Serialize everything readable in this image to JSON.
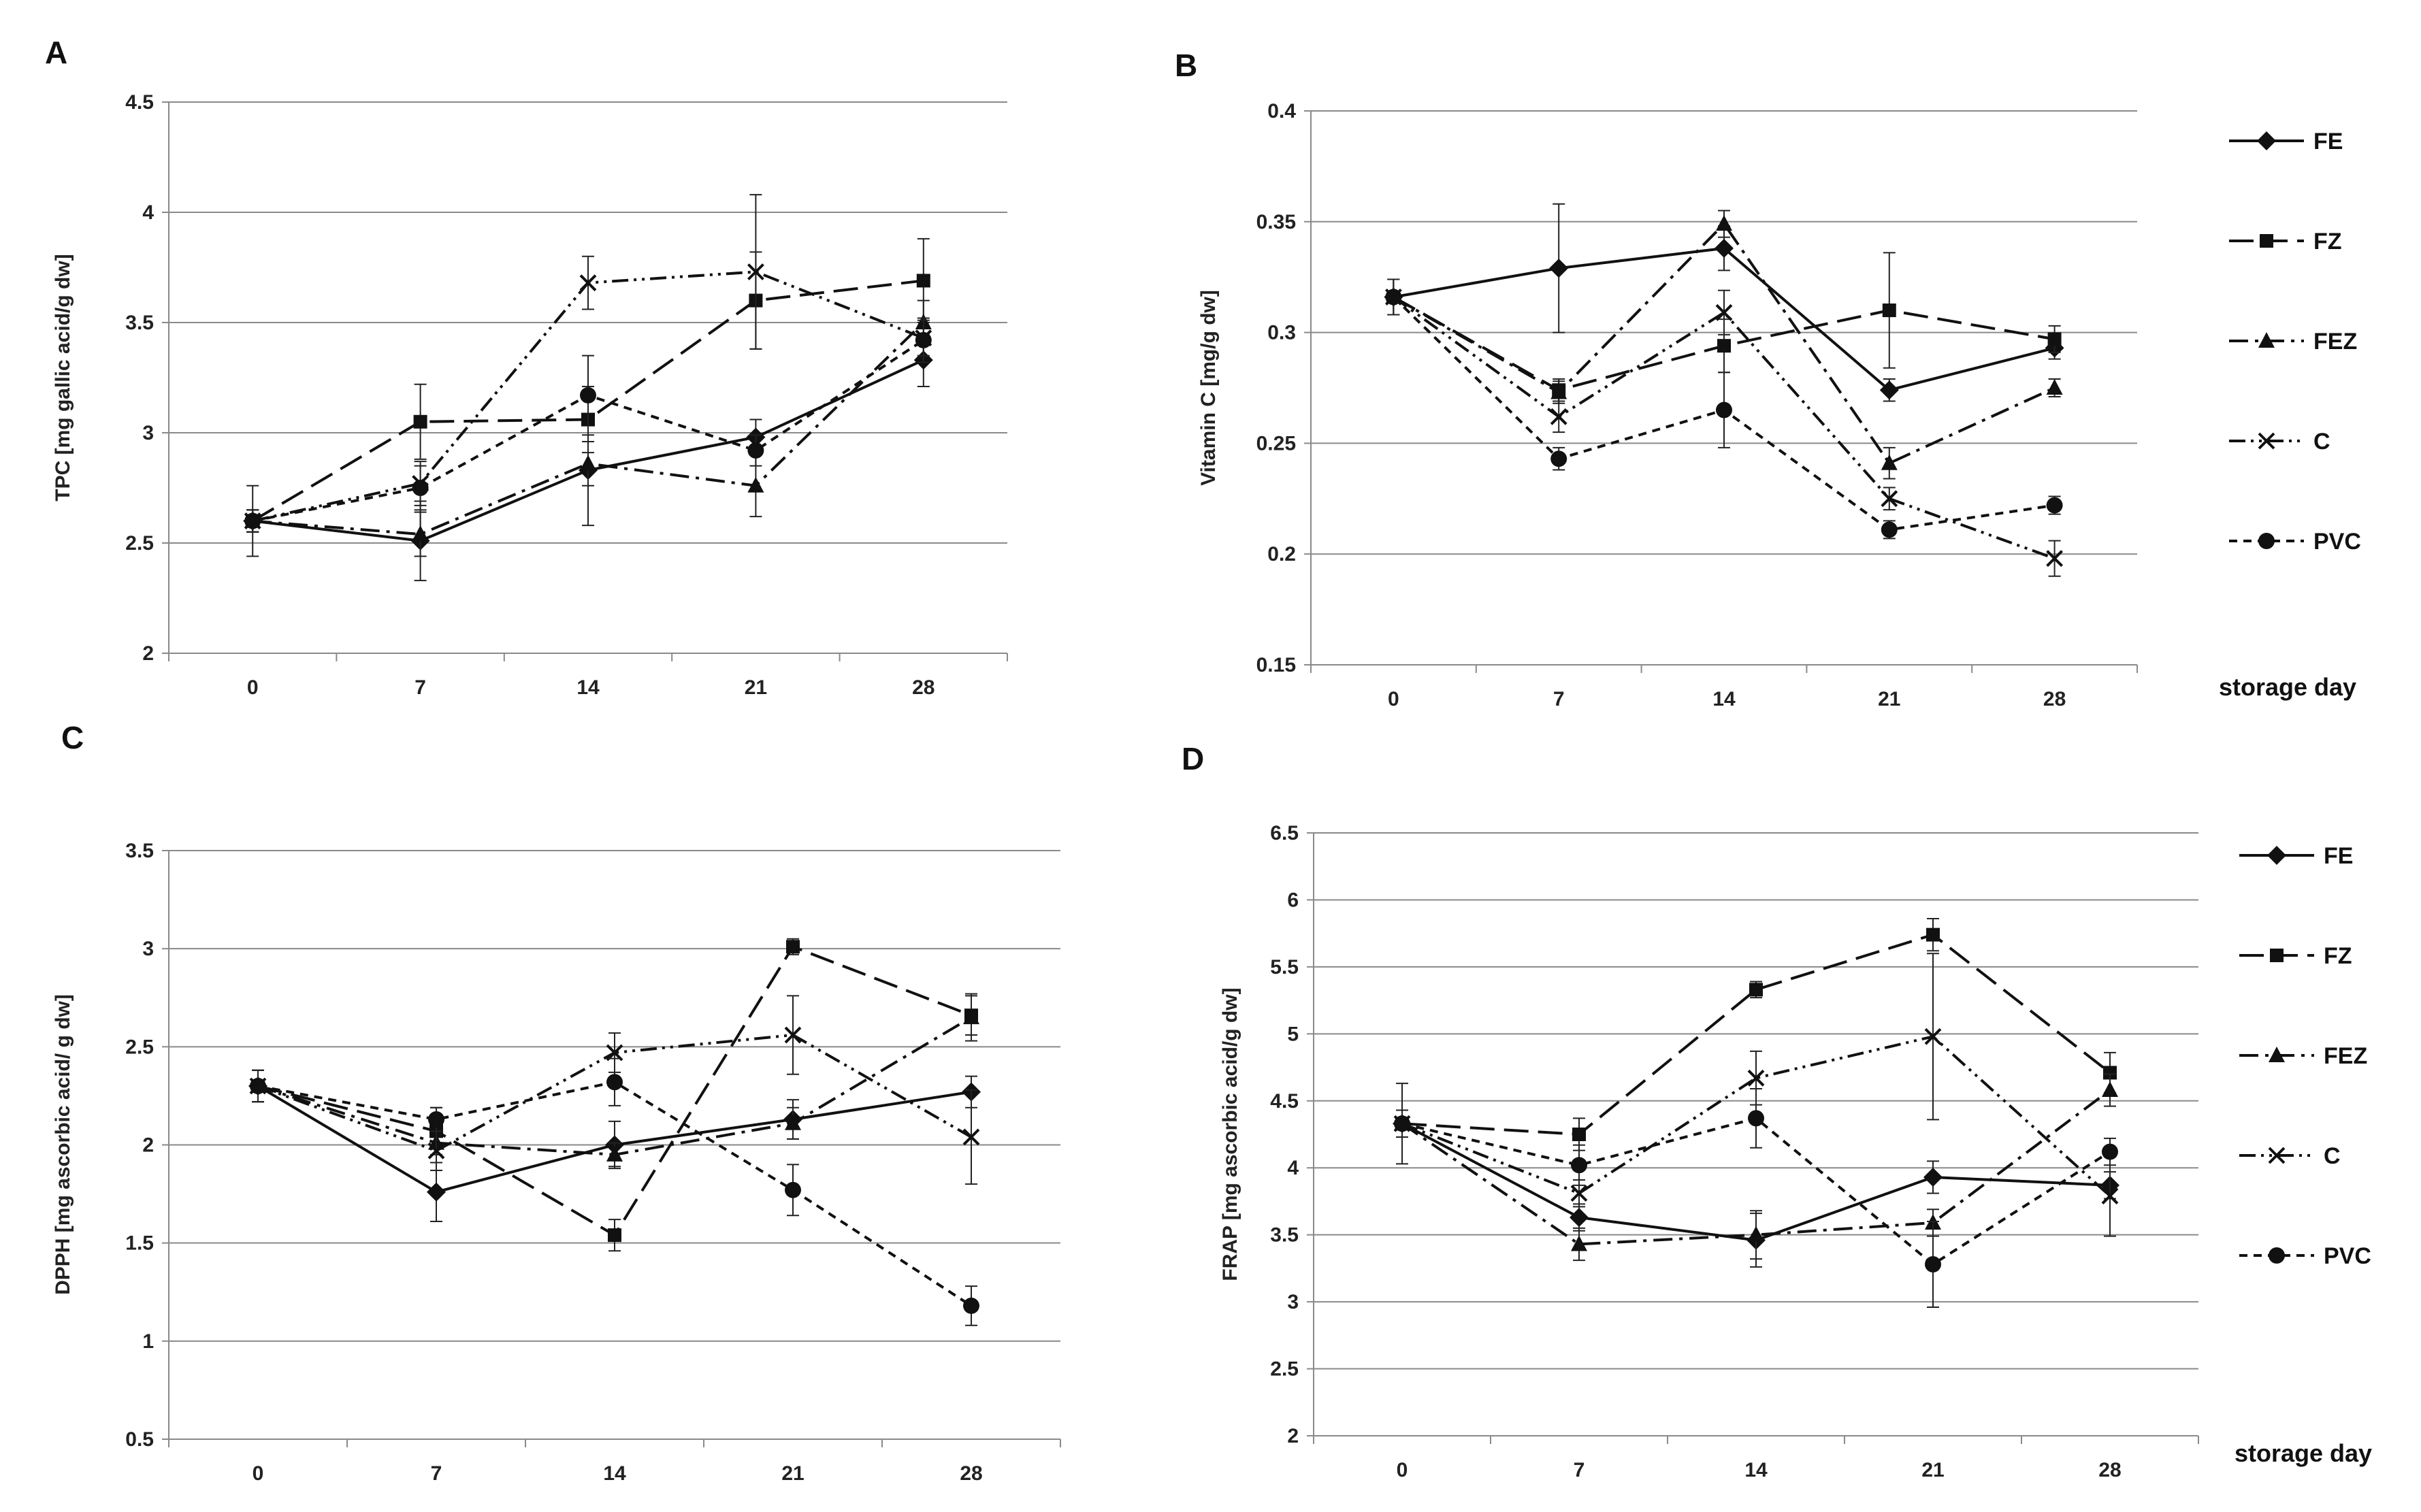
{
  "figure": {
    "xlabel": "storage day"
  },
  "legend": {
    "entries": [
      "FE",
      "FZ",
      "FEZ",
      "C",
      "PVC"
    ]
  },
  "chart_data": [
    {
      "panel": "A",
      "type": "line",
      "title": "",
      "ylabel": "TPC [mg gallic acid/g dw]",
      "xlabel": "",
      "categories": [
        "0",
        "7",
        "14",
        "21",
        "28"
      ],
      "ylim": [
        2,
        4.5
      ],
      "yticks": [
        "2",
        "2.5",
        "3",
        "3.5",
        "4",
        "4.5"
      ],
      "grid": true,
      "series": [
        {
          "name": "FE",
          "values": [
            2.6,
            2.51,
            2.83,
            2.98,
            3.33
          ],
          "errors": [
            0.05,
            0.18,
            0.25,
            0.08,
            0.12
          ]
        },
        {
          "name": "FZ",
          "values": [
            2.6,
            3.05,
            3.06,
            3.6,
            3.69
          ],
          "errors": [
            0.05,
            0.17,
            0.15,
            0.22,
            0.19
          ]
        },
        {
          "name": "FEZ",
          "values": [
            2.6,
            2.54,
            2.86,
            2.76,
            3.5
          ],
          "errors": [
            0.05,
            0.1,
            0.1,
            0.14,
            0.1
          ]
        },
        {
          "name": "C",
          "values": [
            2.6,
            2.77,
            3.68,
            3.73,
            3.43
          ],
          "errors": [
            0.16,
            0.1,
            0.12,
            0.35,
            0.08
          ]
        },
        {
          "name": "PVC",
          "values": [
            2.6,
            2.75,
            3.17,
            2.92,
            3.42
          ],
          "errors": [
            0.05,
            0.1,
            0.18,
            0.07,
            0.1
          ]
        }
      ]
    },
    {
      "panel": "B",
      "type": "line",
      "title": "",
      "ylabel": "Vitamin C [mg/g dw]",
      "xlabel": "storage day",
      "categories": [
        "0",
        "7",
        "14",
        "21",
        "28"
      ],
      "ylim": [
        0.15,
        0.4
      ],
      "yticks": [
        "0.15",
        "0.2",
        "0.25",
        "0.3",
        "0.35",
        "0.4"
      ],
      "grid": true,
      "series": [
        {
          "name": "FE",
          "values": [
            0.316,
            0.329,
            0.338,
            0.274,
            0.293
          ],
          "errors": [
            0.008,
            0.029,
            0.01,
            0.005,
            0.005
          ]
        },
        {
          "name": "FZ",
          "values": [
            0.316,
            0.274,
            0.294,
            0.31,
            0.297
          ],
          "errors": [
            0.008,
            0.005,
            0.012,
            0.026,
            0.006
          ]
        },
        {
          "name": "FEZ",
          "values": [
            0.316,
            0.273,
            0.349,
            0.241,
            0.275
          ],
          "errors": [
            0.008,
            0.005,
            0.006,
            0.007,
            0.004
          ]
        },
        {
          "name": "C",
          "values": [
            0.316,
            0.262,
            0.309,
            0.225,
            0.198
          ],
          "errors": [
            0.008,
            0.007,
            0.01,
            0.005,
            0.008
          ]
        },
        {
          "name": "PVC",
          "values": [
            0.316,
            0.243,
            0.265,
            0.211,
            0.222
          ],
          "errors": [
            0.008,
            0.005,
            0.017,
            0.004,
            0.004
          ]
        }
      ]
    },
    {
      "panel": "C",
      "type": "line",
      "title": "",
      "ylabel": "DPPH [mg ascorbic acid/ g dw]",
      "xlabel": "",
      "categories": [
        "0",
        "7",
        "14",
        "21",
        "28"
      ],
      "ylim": [
        0.5,
        3.5
      ],
      "yticks": [
        "0.5",
        "1",
        "1.5",
        "2",
        "2.5",
        "3",
        "3.5"
      ],
      "grid": true,
      "series": [
        {
          "name": "FE",
          "values": [
            2.3,
            1.76,
            2.0,
            2.13,
            2.27
          ],
          "errors": [
            0.08,
            0.15,
            0.12,
            0.1,
            0.08
          ]
        },
        {
          "name": "FZ",
          "values": [
            2.3,
            2.07,
            1.54,
            3.01,
            2.66
          ],
          "errors": [
            0.08,
            0.12,
            0.08,
            0.04,
            0.1
          ]
        },
        {
          "name": "FEZ",
          "values": [
            2.3,
            2.01,
            1.95,
            2.11,
            2.65
          ],
          "errors": [
            0.08,
            0.1,
            0.06,
            0.08,
            0.12
          ]
        },
        {
          "name": "C",
          "values": [
            2.3,
            1.97,
            2.47,
            2.56,
            2.04
          ],
          "errors": [
            0.08,
            0.1,
            0.1,
            0.2,
            0.24
          ]
        },
        {
          "name": "PVC",
          "values": [
            2.3,
            2.13,
            2.32,
            1.77,
            1.18
          ],
          "errors": [
            0.08,
            0.06,
            0.12,
            0.13,
            0.1
          ]
        }
      ]
    },
    {
      "panel": "D",
      "type": "line",
      "title": "",
      "ylabel": "FRAP [mg ascorbic acid/g dw]",
      "xlabel": "storage day",
      "categories": [
        "0",
        "7",
        "14",
        "21",
        "28"
      ],
      "ylim": [
        2,
        6.5
      ],
      "yticks": [
        "2",
        "2.5",
        "3",
        "3.5",
        "4",
        "4.5",
        "5",
        "5.5",
        "6",
        "6.5"
      ],
      "grid": true,
      "series": [
        {
          "name": "FE",
          "values": [
            4.33,
            3.63,
            3.46,
            3.93,
            3.87
          ],
          "errors": [
            0.3,
            0.1,
            0.2,
            0.12,
            0.1
          ]
        },
        {
          "name": "FZ",
          "values": [
            4.33,
            4.25,
            5.33,
            5.74,
            4.71
          ],
          "errors": [
            0.1,
            0.12,
            0.06,
            0.12,
            0.15
          ]
        },
        {
          "name": "FEZ",
          "values": [
            4.33,
            3.43,
            3.5,
            3.59,
            4.58
          ],
          "errors": [
            0.1,
            0.12,
            0.18,
            0.1,
            0.12
          ]
        },
        {
          "name": "C",
          "values": [
            4.33,
            3.81,
            4.67,
            4.98,
            3.79
          ],
          "errors": [
            0.1,
            0.1,
            0.2,
            0.62,
            0.3
          ]
        },
        {
          "name": "PVC",
          "values": [
            4.33,
            4.02,
            4.37,
            3.28,
            4.12
          ],
          "errors": [
            0.1,
            0.15,
            0.22,
            0.32,
            0.1
          ]
        }
      ]
    }
  ]
}
